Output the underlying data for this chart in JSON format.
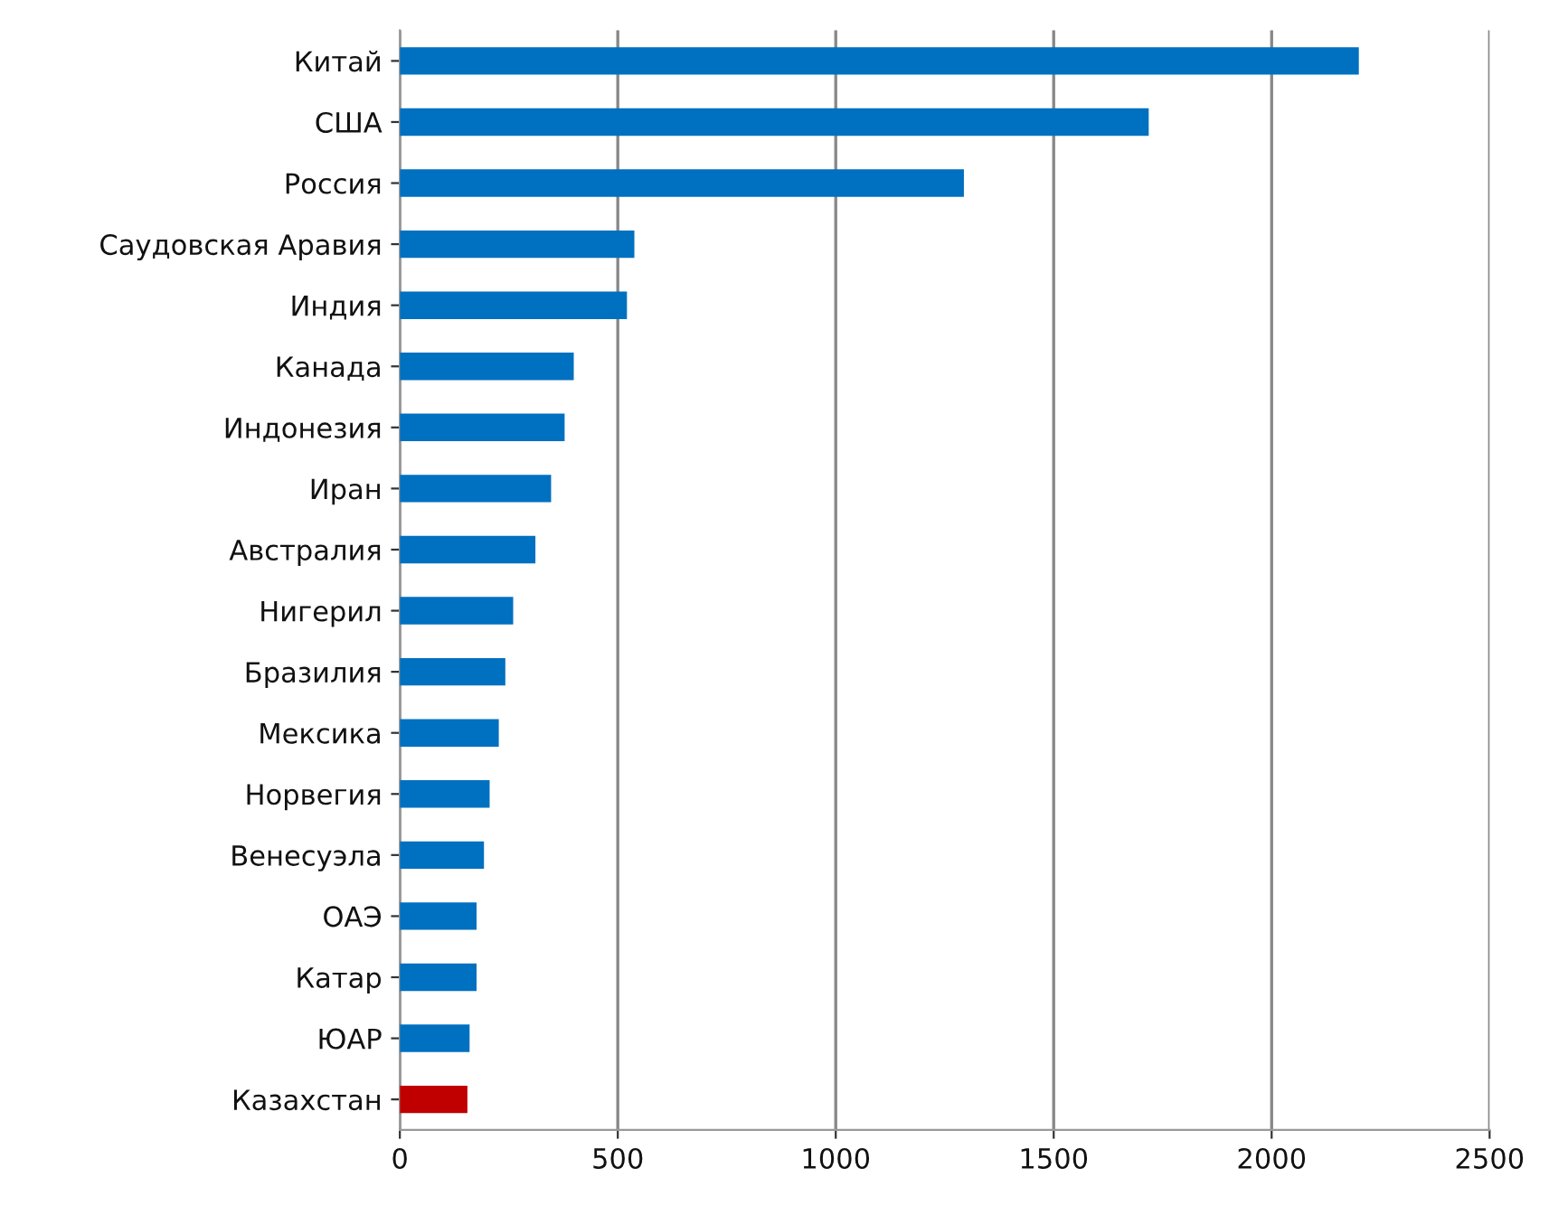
{
  "chart_data": {
    "type": "bar",
    "orientation": "horizontal",
    "categories": [
      "Китай",
      "США",
      "Россия",
      "Саудовская Аравия",
      "Индия",
      "Канада",
      "Индонезия",
      "Иран",
      "Австралия",
      "Нигерил",
      "Бразилия",
      "Мексика",
      "Норвегия",
      "Венесуэла",
      "ОАЭ",
      "Катар",
      "ЮАР",
      "Казахстан"
    ],
    "values": [
      2200,
      1718,
      1294,
      538,
      521,
      399,
      378,
      347,
      311,
      260,
      242,
      227,
      206,
      193,
      176,
      176,
      160,
      155
    ],
    "colors": [
      "#0070c0",
      "#0070c0",
      "#0070c0",
      "#0070c0",
      "#0070c0",
      "#0070c0",
      "#0070c0",
      "#0070c0",
      "#0070c0",
      "#0070c0",
      "#0070c0",
      "#0070c0",
      "#0070c0",
      "#0070c0",
      "#0070c0",
      "#0070c0",
      "#0070c0",
      "#c00000"
    ],
    "xlim": [
      0,
      2500
    ],
    "xticks": [
      0,
      500,
      1000,
      1500,
      2000,
      2500
    ],
    "grid": "x"
  }
}
